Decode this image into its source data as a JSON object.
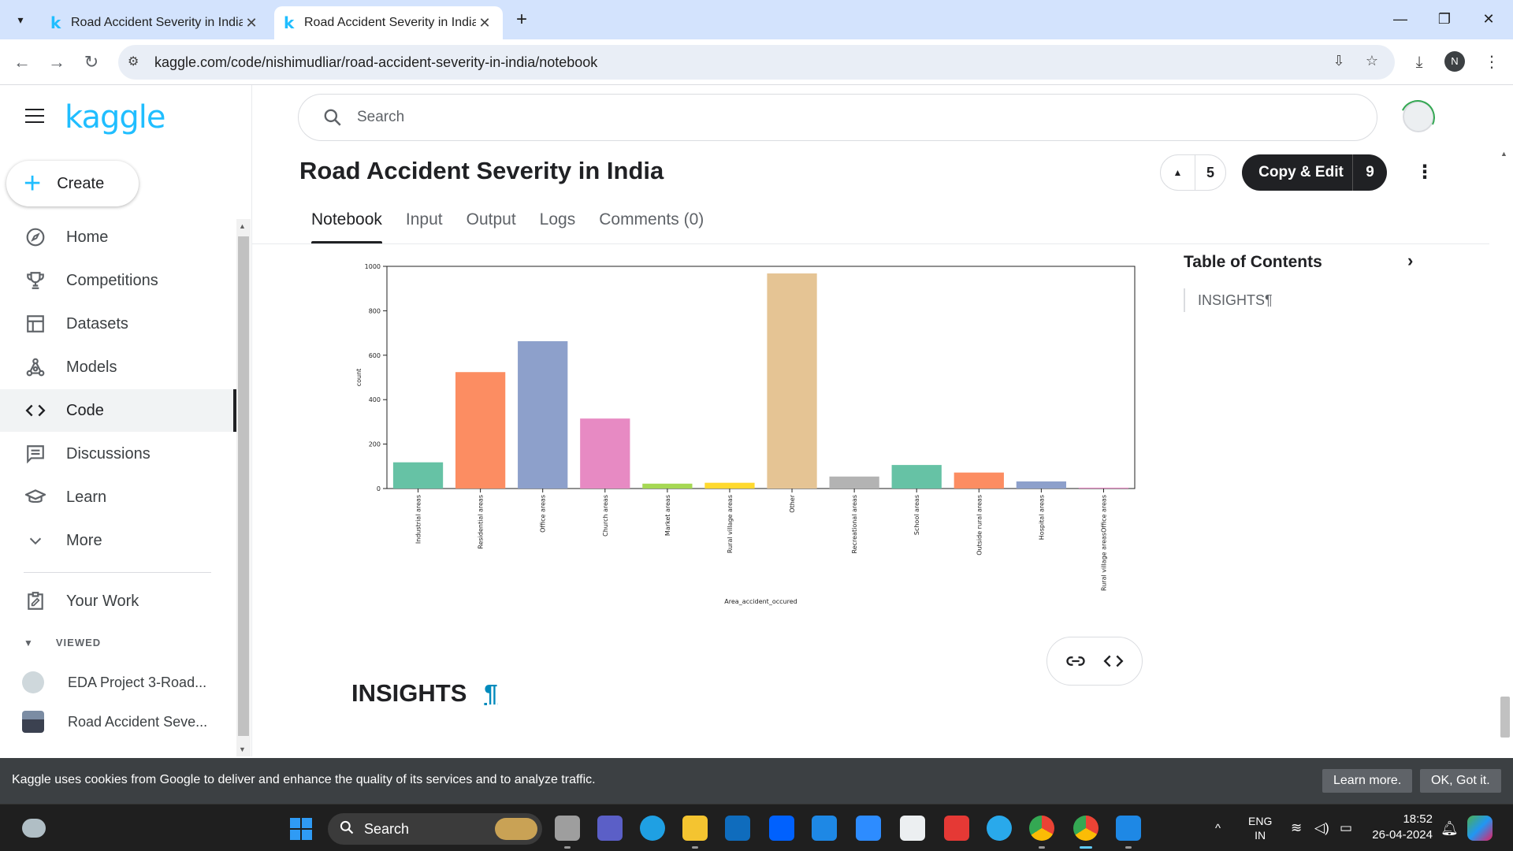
{
  "browser": {
    "tabs": [
      {
        "title": "Road Accident Severity in India",
        "active": false
      },
      {
        "title": "Road Accident Severity in India",
        "active": true
      }
    ],
    "url": "kaggle.com/code/nishimudliar/road-accident-severity-in-india/notebook",
    "profile_initial": "N"
  },
  "sidebar": {
    "logo": "kaggle",
    "create_label": "Create",
    "nav": [
      {
        "label": "Home",
        "icon": "compass-icon"
      },
      {
        "label": "Competitions",
        "icon": "trophy-icon"
      },
      {
        "label": "Datasets",
        "icon": "table-icon"
      },
      {
        "label": "Models",
        "icon": "models-icon"
      },
      {
        "label": "Code",
        "icon": "code-icon",
        "active": true
      },
      {
        "label": "Discussions",
        "icon": "discussion-icon"
      },
      {
        "label": "Learn",
        "icon": "graduation-cap-icon"
      },
      {
        "label": "More",
        "icon": "chevron-down-icon"
      }
    ],
    "your_work": "Your Work",
    "viewed_label": "VIEWED",
    "recent": [
      {
        "label": "EDA Project 3-Road..."
      },
      {
        "label": "Road Accident Seve..."
      }
    ]
  },
  "search": {
    "placeholder": "Search"
  },
  "notebook": {
    "title": "Road Accident Severity in India",
    "upvotes": "5",
    "copy_edit_label": "Copy & Edit",
    "copy_edit_count": "9",
    "tabs": [
      {
        "label": "Notebook",
        "active": true
      },
      {
        "label": "Input"
      },
      {
        "label": "Output"
      },
      {
        "label": "Logs"
      },
      {
        "label": "Comments (0)"
      }
    ],
    "insights_heading": "INSIGHTS",
    "pilcrow": "¶"
  },
  "toc": {
    "title": "Table of Contents",
    "items": [
      "INSIGHTS¶"
    ]
  },
  "chart_data": {
    "type": "bar",
    "xlabel": "Area_accident_occured",
    "ylabel": "count",
    "ylim": [
      0,
      1000
    ],
    "yticks": [
      0,
      200,
      400,
      600,
      800,
      1000
    ],
    "categories": [
      "Industrial areas",
      "Residential areas",
      "Office areas",
      "Church areas",
      "Market areas",
      "Rural village areas",
      "Other",
      "Recreational areas",
      "School areas",
      "Outside rural areas",
      "Hospital areas",
      "Rural village areasOffice areas"
    ],
    "values": [
      118,
      524,
      663,
      315,
      22,
      26,
      968,
      54,
      106,
      72,
      32,
      4
    ],
    "colors": [
      "#66c2a5",
      "#fc8d62",
      "#8da0cb",
      "#e78ac3",
      "#a6d854",
      "#ffd92f",
      "#e5c494",
      "#b3b3b3",
      "#66c2a5",
      "#fc8d62",
      "#8da0cb",
      "#e78ac3"
    ]
  },
  "cookie": {
    "message": "Kaggle uses cookies from Google to deliver and enhance the quality of its services and to analyze traffic.",
    "learn_more": "Learn more.",
    "ok": "OK, Got it."
  },
  "taskbar": {
    "search": "Search",
    "lang": "ENG",
    "region": "IN",
    "time": "18:52",
    "date": "26-04-2024"
  }
}
